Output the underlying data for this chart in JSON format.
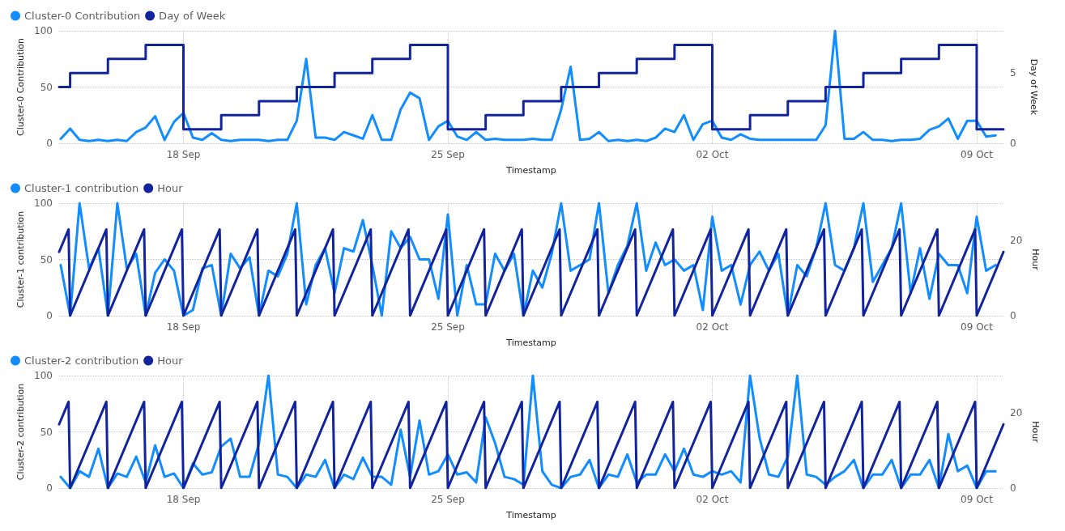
{
  "chart_data": [
    {
      "type": "line",
      "xlabel": "Timestamp",
      "ylabel": "Cluster-0 Contribution",
      "y2label": "Day of Week",
      "legend": "top left",
      "grid": true,
      "marker": "none",
      "line_style": "solid",
      "x": [
        "--09-14T18:00",
        "--09-15T00:00",
        "--09-15T06:00",
        "--09-15T12:00",
        "--09-15T18:00",
        "--09-16T00:00",
        "--09-16T06:00",
        "--09-16T12:00",
        "--09-16T18:00",
        "--09-17T00:00",
        "--09-17T06:00",
        "--09-17T12:00",
        "--09-17T18:00",
        "--09-18T00:00",
        "--09-18T06:00",
        "--09-18T12:00",
        "--09-18T18:00",
        "--09-19T00:00",
        "--09-19T06:00",
        "--09-19T12:00",
        "--09-19T18:00",
        "--09-20T00:00",
        "--09-20T06:00",
        "--09-20T12:00",
        "--09-20T18:00",
        "--09-21T00:00",
        "--09-21T06:00",
        "--09-21T12:00",
        "--09-21T18:00",
        "--09-22T00:00",
        "--09-22T06:00",
        "--09-22T12:00",
        "--09-22T18:00",
        "--09-23T00:00",
        "--09-23T06:00",
        "--09-23T12:00",
        "--09-23T18:00",
        "--09-24T00:00",
        "--09-24T06:00",
        "--09-24T12:00",
        "--09-24T18:00",
        "--09-25T00:00",
        "--09-25T06:00",
        "--09-25T12:00",
        "--09-25T18:00",
        "--09-26T00:00",
        "--09-26T06:00",
        "--09-26T12:00",
        "--09-26T18:00",
        "--09-27T00:00",
        "--09-27T06:00",
        "--09-27T12:00",
        "--09-27T18:00",
        "--09-28T00:00",
        "--09-28T06:00",
        "--09-28T12:00",
        "--09-28T18:00",
        "--09-29T00:00",
        "--09-29T06:00",
        "--09-29T12:00",
        "--09-29T18:00",
        "--09-30T00:00",
        "--09-30T06:00",
        "--09-30T12:00",
        "--09-30T18:00",
        "--10-01T00:00",
        "--10-01T06:00",
        "--10-01T12:00",
        "--10-01T18:00",
        "--10-02T00:00",
        "--10-02T06:00",
        "--10-02T12:00",
        "--10-02T18:00",
        "--10-03T00:00",
        "--10-03T06:00",
        "--10-03T12:00",
        "--10-03T18:00",
        "--10-04T00:00",
        "--10-04T06:00",
        "--10-04T12:00",
        "--10-04T18:00",
        "--10-05T00:00",
        "--10-05T06:00",
        "--10-05T12:00",
        "--10-05T18:00",
        "--10-06T00:00",
        "--10-06T06:00",
        "--10-06T12:00",
        "--10-06T18:00",
        "--10-07T00:00",
        "--10-07T06:00",
        "--10-07T12:00",
        "--10-07T18:00",
        "--10-08T00:00",
        "--10-08T06:00",
        "--10-08T12:00",
        "--10-08T18:00",
        "--10-09T00:00",
        "--10-09T06:00",
        "--10-09T12:00"
      ],
      "xlim": [
        "--09-14T17:00",
        "--10-09T17:00"
      ],
      "xticks": [
        {
          "value": "--09-18",
          "label": "18 Sep"
        },
        {
          "value": "--09-25",
          "label": "25 Sep"
        },
        {
          "value": "--10-02",
          "label": "02 Oct"
        },
        {
          "value": "--10-09",
          "label": "09 Oct"
        }
      ],
      "ylim": [
        0,
        100
      ],
      "yticks": [
        0,
        50,
        100
      ],
      "y2lim": [
        0,
        8
      ],
      "y2ticks": [
        0,
        5
      ],
      "series": [
        {
          "name": "Cluster-0 Contribution",
          "color": "#118dff",
          "values": [
            4,
            13,
            3,
            2,
            3,
            2,
            3,
            2,
            10,
            14,
            24,
            3,
            19,
            27,
            5,
            3,
            9,
            3,
            2,
            3,
            3,
            3,
            2,
            3,
            3,
            20,
            75,
            5,
            5,
            3,
            10,
            7,
            4,
            25,
            3,
            3,
            30,
            45,
            40,
            3,
            15,
            20,
            6,
            3,
            10,
            3,
            4,
            3,
            3,
            3,
            4,
            3,
            3,
            30,
            68,
            3,
            4,
            10,
            2,
            3,
            2,
            3,
            2,
            5,
            13,
            10,
            25,
            3,
            17,
            20,
            5,
            3,
            8,
            4,
            3,
            3,
            3,
            3,
            3,
            3,
            3,
            16,
            100,
            4,
            4,
            10,
            3,
            3,
            2,
            3,
            3,
            4,
            12,
            15,
            22,
            4,
            20,
            20,
            6,
            7
          ]
        },
        {
          "name": "Day of Week",
          "color": "#12239e",
          "type": "step",
          "axis": "y2",
          "x": [
            "--09-14T17:00",
            "--09-15",
            "--09-16",
            "--09-17",
            "--09-18",
            "--09-19",
            "--09-20",
            "--09-21",
            "--09-22",
            "--09-23",
            "--09-24",
            "--09-25",
            "--09-26",
            "--09-27",
            "--09-28",
            "--09-29",
            "--09-30",
            "--10-01",
            "--10-02",
            "--10-03",
            "--10-04",
            "--10-05",
            "--10-06",
            "--10-07",
            "--10-08",
            "--10-09",
            "--10-09T17:00"
          ],
          "values": [
            4,
            5,
            6,
            7,
            1,
            2,
            3,
            4,
            5,
            6,
            7,
            1,
            2,
            3,
            4,
            5,
            6,
            7,
            1,
            2,
            3,
            4,
            5,
            6,
            7,
            1,
            1
          ]
        }
      ]
    },
    {
      "type": "line",
      "xlabel": "Timestamp",
      "ylabel": "Cluster-1 contribution",
      "y2label": "Hour",
      "legend": "top left",
      "grid": true,
      "marker": "none",
      "line_style": "solid",
      "x": [
        "--09-14T18:00",
        "--09-15T00:00",
        "--09-15T06:00",
        "--09-15T12:00",
        "--09-15T18:00",
        "--09-16T00:00",
        "--09-16T06:00",
        "--09-16T12:00",
        "--09-16T18:00",
        "--09-17T00:00",
        "--09-17T06:00",
        "--09-17T12:00",
        "--09-17T18:00",
        "--09-18T00:00",
        "--09-18T06:00",
        "--09-18T12:00",
        "--09-18T18:00",
        "--09-19T00:00",
        "--09-19T06:00",
        "--09-19T12:00",
        "--09-19T18:00",
        "--09-20T00:00",
        "--09-20T06:00",
        "--09-20T12:00",
        "--09-20T18:00",
        "--09-21T00:00",
        "--09-21T06:00",
        "--09-21T12:00",
        "--09-21T18:00",
        "--09-22T00:00",
        "--09-22T06:00",
        "--09-22T12:00",
        "--09-22T18:00",
        "--09-23T00:00",
        "--09-23T06:00",
        "--09-23T12:00",
        "--09-23T18:00",
        "--09-24T00:00",
        "--09-24T06:00",
        "--09-24T12:00",
        "--09-24T18:00",
        "--09-25T00:00",
        "--09-25T06:00",
        "--09-25T12:00",
        "--09-25T18:00",
        "--09-26T00:00",
        "--09-26T06:00",
        "--09-26T12:00",
        "--09-26T18:00",
        "--09-27T00:00",
        "--09-27T06:00",
        "--09-27T12:00",
        "--09-27T18:00",
        "--09-28T00:00",
        "--09-28T06:00",
        "--09-28T12:00",
        "--09-28T18:00",
        "--09-29T00:00",
        "--09-29T06:00",
        "--09-29T12:00",
        "--09-29T18:00",
        "--09-30T00:00",
        "--09-30T06:00",
        "--09-30T12:00",
        "--09-30T18:00",
        "--10-01T00:00",
        "--10-01T06:00",
        "--10-01T12:00",
        "--10-01T18:00",
        "--10-02T00:00",
        "--10-02T06:00",
        "--10-02T12:00",
        "--10-02T18:00",
        "--10-03T00:00",
        "--10-03T06:00",
        "--10-03T12:00",
        "--10-03T18:00",
        "--10-04T00:00",
        "--10-04T06:00",
        "--10-04T12:00",
        "--10-04T18:00",
        "--10-05T00:00",
        "--10-05T06:00",
        "--10-05T12:00",
        "--10-05T18:00",
        "--10-06T00:00",
        "--10-06T06:00",
        "--10-06T12:00",
        "--10-06T18:00",
        "--10-07T00:00",
        "--10-07T06:00",
        "--10-07T12:00",
        "--10-07T18:00",
        "--10-08T00:00",
        "--10-08T06:00",
        "--10-08T12:00",
        "--10-08T18:00",
        "--10-09T00:00",
        "--10-09T06:00",
        "--10-09T12:00"
      ],
      "xlim": [
        "--09-14T17:00",
        "--10-09T17:00"
      ],
      "xticks": [
        {
          "value": "--09-18",
          "label": "18 Sep"
        },
        {
          "value": "--09-25",
          "label": "25 Sep"
        },
        {
          "value": "--10-02",
          "label": "02 Oct"
        },
        {
          "value": "--10-09",
          "label": "09 Oct"
        }
      ],
      "ylim": [
        0,
        100
      ],
      "yticks": [
        0,
        50,
        100
      ],
      "y2lim": [
        0,
        30
      ],
      "y2ticks": [
        0,
        20
      ],
      "series": [
        {
          "name": "Cluster-1 contribution",
          "color": "#118dff",
          "values": [
            45,
            0,
            100,
            42,
            60,
            0,
            100,
            42,
            55,
            0,
            38,
            50,
            40,
            0,
            5,
            42,
            45,
            0,
            55,
            42,
            52,
            0,
            40,
            35,
            55,
            100,
            10,
            45,
            60,
            20,
            60,
            57,
            85,
            45,
            0,
            75,
            60,
            70,
            50,
            50,
            15,
            90,
            0,
            45,
            10,
            10,
            55,
            40,
            55,
            0,
            40,
            25,
            55,
            100,
            40,
            45,
            50,
            100,
            20,
            45,
            62,
            100,
            40,
            65,
            45,
            50,
            40,
            45,
            5,
            88,
            40,
            45,
            10,
            45,
            57,
            40,
            55,
            0,
            45,
            35,
            60,
            100,
            45,
            40,
            60,
            100,
            30,
            45,
            60,
            100,
            20,
            60,
            15,
            55,
            45,
            45,
            20,
            88,
            40,
            45
          ]
        },
        {
          "name": "Hour",
          "color": "#12239e",
          "axis": "y2",
          "x": [
            "--09-14T17:00",
            "--09-14T23:00",
            "--09-15T00:00",
            "--09-15T23:00",
            "--09-16T00:00",
            "--09-16T23:00",
            "--09-17T00:00",
            "--09-17T23:00",
            "--09-18T00:00",
            "--09-18T23:00",
            "--09-19T00:00",
            "--09-19T23:00",
            "--09-20T00:00",
            "--09-20T23:00",
            "--09-21T00:00",
            "--09-21T23:00",
            "--09-22T00:00",
            "--09-22T23:00",
            "--09-23T00:00",
            "--09-23T23:00",
            "--09-24T00:00",
            "--09-24T23:00",
            "--09-25T00:00",
            "--09-25T23:00",
            "--09-26T00:00",
            "--09-26T23:00",
            "--09-27T00:00",
            "--09-27T23:00",
            "--09-28T00:00",
            "--09-28T23:00",
            "--09-29T00:00",
            "--09-29T23:00",
            "--09-30T00:00",
            "--09-30T23:00",
            "--10-01T00:00",
            "--10-01T23:00",
            "--10-02T00:00",
            "--10-02T23:00",
            "--10-03T00:00",
            "--10-03T23:00",
            "--10-04T00:00",
            "--10-04T23:00",
            "--10-05T00:00",
            "--10-05T23:00",
            "--10-06T00:00",
            "--10-06T23:00",
            "--10-07T00:00",
            "--10-07T23:00",
            "--10-08T00:00",
            "--10-08T23:00",
            "--10-09T00:00",
            "--10-09T17:00"
          ],
          "values": [
            17,
            23,
            0,
            23,
            0,
            23,
            0,
            23,
            0,
            23,
            0,
            23,
            0,
            23,
            0,
            23,
            0,
            23,
            0,
            23,
            0,
            23,
            0,
            23,
            0,
            23,
            0,
            23,
            0,
            23,
            0,
            23,
            0,
            23,
            0,
            23,
            0,
            23,
            0,
            23,
            0,
            23,
            0,
            23,
            0,
            23,
            0,
            23,
            0,
            23,
            0,
            17
          ]
        }
      ]
    },
    {
      "type": "line",
      "xlabel": "Timestamp",
      "ylabel": "Cluster-2 contribution",
      "y2label": "Hour",
      "legend": "top left",
      "grid": true,
      "marker": "none",
      "line_style": "solid",
      "x": [
        "--09-14T18:00",
        "--09-15T00:00",
        "--09-15T06:00",
        "--09-15T12:00",
        "--09-15T18:00",
        "--09-16T00:00",
        "--09-16T06:00",
        "--09-16T12:00",
        "--09-16T18:00",
        "--09-17T00:00",
        "--09-17T06:00",
        "--09-17T12:00",
        "--09-17T18:00",
        "--09-18T00:00",
        "--09-18T06:00",
        "--09-18T12:00",
        "--09-18T18:00",
        "--09-19T00:00",
        "--09-19T06:00",
        "--09-19T12:00",
        "--09-19T18:00",
        "--09-20T00:00",
        "--09-20T06:00",
        "--09-20T12:00",
        "--09-20T18:00",
        "--09-21T00:00",
        "--09-21T06:00",
        "--09-21T12:00",
        "--09-21T18:00",
        "--09-22T00:00",
        "--09-22T06:00",
        "--09-22T12:00",
        "--09-22T18:00",
        "--09-23T00:00",
        "--09-23T06:00",
        "--09-23T12:00",
        "--09-23T18:00",
        "--09-24T00:00",
        "--09-24T06:00",
        "--09-24T12:00",
        "--09-24T18:00",
        "--09-25T00:00",
        "--09-25T06:00",
        "--09-25T12:00",
        "--09-25T18:00",
        "--09-26T00:00",
        "--09-26T06:00",
        "--09-26T12:00",
        "--09-26T18:00",
        "--09-27T00:00",
        "--09-27T06:00",
        "--09-27T12:00",
        "--09-27T18:00",
        "--09-28T00:00",
        "--09-28T06:00",
        "--09-28T12:00",
        "--09-28T18:00",
        "--09-29T00:00",
        "--09-29T06:00",
        "--09-29T12:00",
        "--09-29T18:00",
        "--09-30T00:00",
        "--09-30T06:00",
        "--09-30T12:00",
        "--09-30T18:00",
        "--10-01T00:00",
        "--10-01T06:00",
        "--10-01T12:00",
        "--10-01T18:00",
        "--10-02T00:00",
        "--10-02T06:00",
        "--10-02T12:00",
        "--10-02T18:00",
        "--10-03T00:00",
        "--10-03T06:00",
        "--10-03T12:00",
        "--10-03T18:00",
        "--10-04T00:00",
        "--10-04T06:00",
        "--10-04T12:00",
        "--10-04T18:00",
        "--10-05T00:00",
        "--10-05T06:00",
        "--10-05T12:00",
        "--10-05T18:00",
        "--10-06T00:00",
        "--10-06T06:00",
        "--10-06T12:00",
        "--10-06T18:00",
        "--10-07T00:00",
        "--10-07T06:00",
        "--10-07T12:00",
        "--10-07T18:00",
        "--10-08T00:00",
        "--10-08T06:00",
        "--10-08T12:00",
        "--10-08T18:00",
        "--10-09T00:00",
        "--10-09T06:00",
        "--10-09T12:00"
      ],
      "xlim": [
        "--09-14T17:00",
        "--10-09T17:00"
      ],
      "xticks": [
        {
          "value": "--09-18",
          "label": "18 Sep"
        },
        {
          "value": "--09-25",
          "label": "25 Sep"
        },
        {
          "value": "--10-02",
          "label": "02 Oct"
        },
        {
          "value": "--10-09",
          "label": "09 Oct"
        }
      ],
      "ylim": [
        0,
        100
      ],
      "yticks": [
        0,
        50,
        100
      ],
      "y2lim": [
        0,
        30
      ],
      "y2ticks": [
        0,
        20
      ],
      "series": [
        {
          "name": "Cluster-2 contribution",
          "color": "#118dff",
          "values": [
            10,
            0,
            15,
            10,
            35,
            0,
            13,
            10,
            28,
            5,
            38,
            10,
            13,
            0,
            22,
            12,
            14,
            37,
            44,
            10,
            10,
            40,
            100,
            12,
            10,
            0,
            12,
            10,
            25,
            0,
            12,
            8,
            27,
            10,
            10,
            3,
            52,
            10,
            60,
            12,
            15,
            30,
            12,
            14,
            5,
            63,
            40,
            10,
            8,
            3,
            100,
            15,
            3,
            0,
            10,
            12,
            25,
            0,
            12,
            10,
            30,
            5,
            12,
            12,
            30,
            15,
            35,
            12,
            10,
            15,
            12,
            15,
            5,
            100,
            45,
            12,
            10,
            28,
            100,
            12,
            10,
            3,
            10,
            15,
            25,
            0,
            12,
            12,
            25,
            0,
            12,
            12,
            25,
            0,
            48,
            15,
            20,
            0,
            15,
            15
          ]
        },
        {
          "name": "Hour",
          "color": "#12239e",
          "axis": "y2",
          "x": [
            "--09-14T17:00",
            "--09-14T23:00",
            "--09-15T00:00",
            "--09-15T23:00",
            "--09-16T00:00",
            "--09-16T23:00",
            "--09-17T00:00",
            "--09-17T23:00",
            "--09-18T00:00",
            "--09-18T23:00",
            "--09-19T00:00",
            "--09-19T23:00",
            "--09-20T00:00",
            "--09-20T23:00",
            "--09-21T00:00",
            "--09-21T23:00",
            "--09-22T00:00",
            "--09-22T23:00",
            "--09-23T00:00",
            "--09-23T23:00",
            "--09-24T00:00",
            "--09-24T23:00",
            "--09-25T00:00",
            "--09-25T23:00",
            "--09-26T00:00",
            "--09-26T23:00",
            "--09-27T00:00",
            "--09-27T23:00",
            "--09-28T00:00",
            "--09-28T23:00",
            "--09-29T00:00",
            "--09-29T23:00",
            "--09-30T00:00",
            "--09-30T23:00",
            "--10-01T00:00",
            "--10-01T23:00",
            "--10-02T00:00",
            "--10-02T23:00",
            "--10-03T00:00",
            "--10-03T23:00",
            "--10-04T00:00",
            "--10-04T23:00",
            "--10-05T00:00",
            "--10-05T23:00",
            "--10-06T00:00",
            "--10-06T23:00",
            "--10-07T00:00",
            "--10-07T23:00",
            "--10-08T00:00",
            "--10-08T23:00",
            "--10-09T00:00",
            "--10-09T17:00"
          ],
          "values": [
            17,
            23,
            0,
            23,
            0,
            23,
            0,
            23,
            0,
            23,
            0,
            23,
            0,
            23,
            0,
            23,
            0,
            23,
            0,
            23,
            0,
            23,
            0,
            23,
            0,
            23,
            0,
            23,
            0,
            23,
            0,
            23,
            0,
            23,
            0,
            23,
            0,
            23,
            0,
            23,
            0,
            23,
            0,
            23,
            0,
            23,
            0,
            23,
            0,
            23,
            0,
            17
          ]
        }
      ]
    }
  ]
}
